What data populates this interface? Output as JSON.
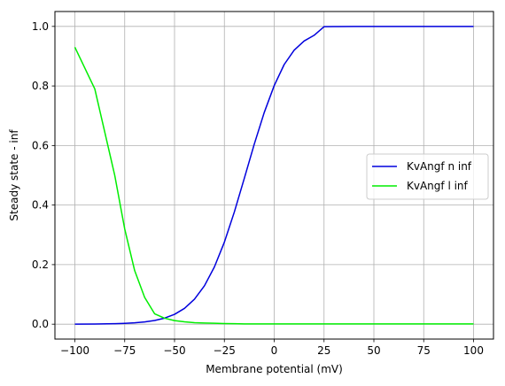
{
  "chart_data": {
    "type": "line",
    "title": "",
    "xlabel": "Membrane potential (mV)",
    "ylabel": "Steady state - inf",
    "xlim": [
      -110,
      110
    ],
    "ylim": [
      -0.05,
      1.05
    ],
    "xticks": [
      -100,
      -75,
      -50,
      -25,
      0,
      25,
      50,
      75,
      100
    ],
    "yticks": [
      0.0,
      0.2,
      0.4,
      0.6,
      0.8,
      1.0
    ],
    "xtick_labels": [
      "−100",
      "−75",
      "−50",
      "−25",
      "0",
      "25",
      "50",
      "75",
      "100"
    ],
    "ytick_labels": [
      "0.0",
      "0.2",
      "0.4",
      "0.6",
      "0.8",
      "1.0"
    ],
    "grid": true,
    "legend_position": "right",
    "x": [
      -100,
      -90,
      -80,
      -75,
      -70,
      -65,
      -60,
      -55,
      -50,
      -45,
      -40,
      -35,
      -30,
      -25,
      -20,
      -15,
      -10,
      -5,
      0,
      5,
      10,
      15,
      20,
      25,
      30,
      40,
      50,
      60,
      70,
      80,
      90,
      100
    ],
    "series": [
      {
        "name": "KvAngf n inf",
        "color": "#0000dd",
        "values": [
          0.0002,
          0.0006,
          0.0016,
          0.0027,
          0.0045,
          0.0075,
          0.0124,
          0.0203,
          0.0331,
          0.0531,
          0.0839,
          0.129,
          0.1922,
          0.2754,
          0.3768,
          0.4898,
          0.6046,
          0.7109,
          0.8012,
          0.872,
          0.92,
          0.951,
          0.97,
          0.999,
          0.9995,
          0.9998,
          1.0,
          1.0,
          1.0,
          1.0,
          1.0,
          1.0
        ]
      },
      {
        "name": "KvAngf l inf",
        "color": "#00ee00",
        "values": [
          0.93,
          0.79,
          0.5,
          0.32,
          0.18,
          0.09,
          0.035,
          0.02,
          0.012,
          0.008,
          0.005,
          0.004,
          0.003,
          0.002,
          0.0015,
          0.001,
          0.001,
          0.001,
          0.001,
          0.001,
          0.001,
          0.001,
          0.001,
          0.001,
          0.001,
          0.001,
          0.001,
          0.001,
          0.001,
          0.001,
          0.001,
          0.001
        ]
      }
    ]
  }
}
